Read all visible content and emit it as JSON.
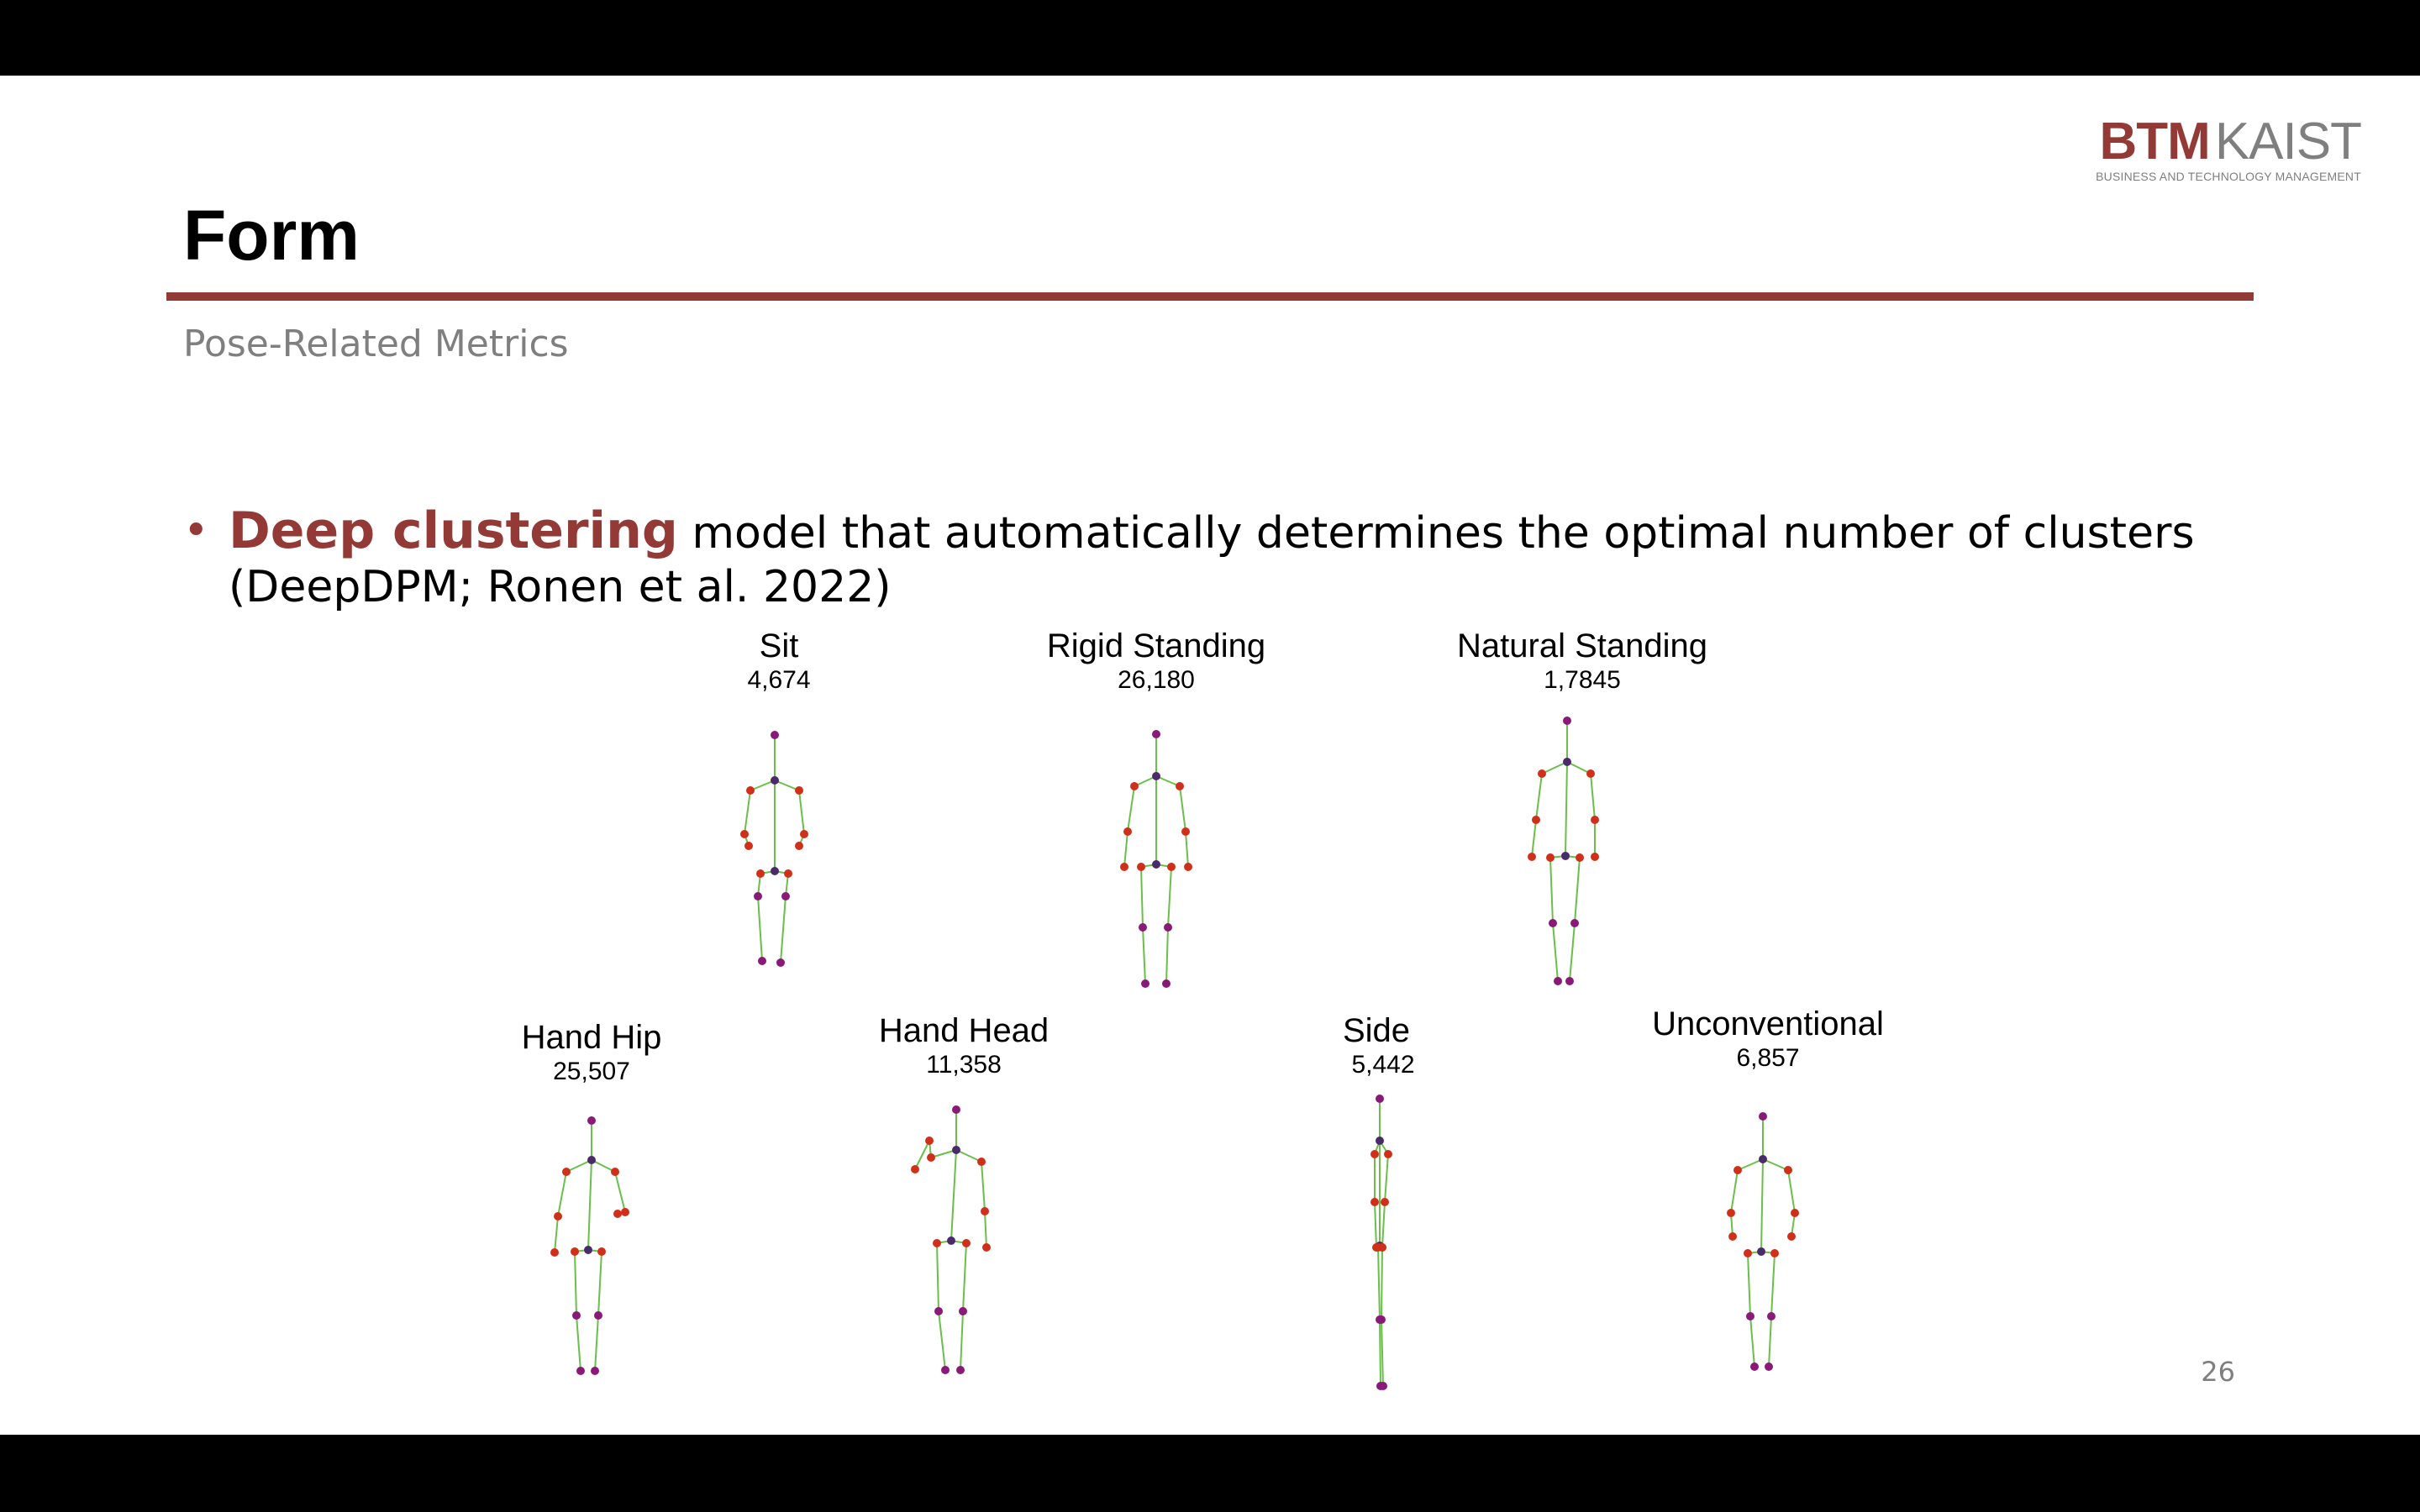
{
  "header": {
    "logo_main": "BTM",
    "logo_secondary": "KAIST",
    "logo_subtitle": "BUSINESS AND TECHNOLOGY MANAGEMENT",
    "title": "Form",
    "subtitle": "Pose-Related Metrics"
  },
  "bullet": {
    "highlight": "Deep clustering",
    "text": " model that automatically determines the optimal number of clusters (DeepDPM; Ronen et al. 2022)"
  },
  "clusters": [
    {
      "name": "Sit",
      "count": "4,674"
    },
    {
      "name": "Rigid Standing",
      "count": "26,180"
    },
    {
      "name": "Natural Standing",
      "count": "1,7845"
    },
    {
      "name": "Hand Hip",
      "count": "25,507"
    },
    {
      "name": "Hand Head",
      "count": "11,358"
    },
    {
      "name": "Side",
      "count": "5,442"
    },
    {
      "name": "Unconventional",
      "count": "6,857"
    }
  ],
  "page_number": "26",
  "colors": {
    "accent": "#933a37",
    "gray_text": "#7f7f7f",
    "bone": "#6abf4b",
    "joint_red": "#d0301a",
    "joint_purple": "#8a1a78",
    "joint_dark": "#4b2a6a"
  }
}
